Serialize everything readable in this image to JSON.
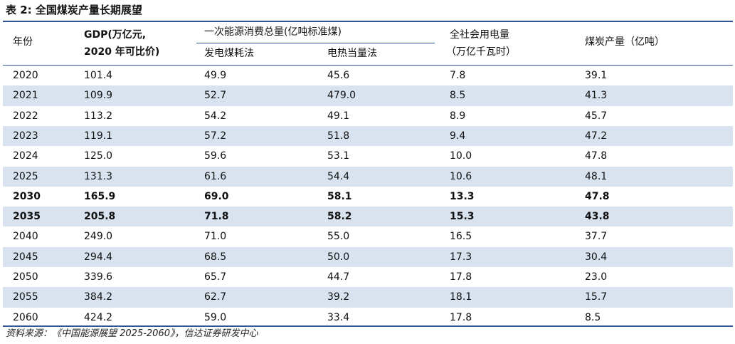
{
  "title": "表 2: 全国煤炭产量长期展望",
  "table": {
    "header": {
      "year": "年份",
      "gdp": [
        "GDP(万亿元,",
        "2020 年可比价)"
      ],
      "energy_group": "一次能源消费总量(亿吨标准煤)",
      "energy_sub": [
        "发电煤耗法",
        "电热当量法"
      ],
      "power": [
        "全社会用电量",
        "（万亿千瓦时）"
      ],
      "coal": "煤炭产量（亿吨）"
    },
    "rows": [
      [
        "2020",
        "101.4",
        "49.9",
        "45.6",
        "7.8",
        "39.1"
      ],
      [
        "2021",
        "109.9",
        "52.7",
        "479.0",
        "8.5",
        "41.3"
      ],
      [
        "2022",
        "113.2",
        "54.2",
        "49.1",
        "8.9",
        "45.7"
      ],
      [
        "2023",
        "119.1",
        "57.2",
        "51.8",
        "9.4",
        "47.2"
      ],
      [
        "2024",
        "125.0",
        "59.6",
        "53.1",
        "10.0",
        "47.8"
      ],
      [
        "2025",
        "131.3",
        "61.6",
        "54.4",
        "10.6",
        "48.1"
      ],
      [
        "2030",
        "165.9",
        "69.0",
        "58.1",
        "13.3",
        "47.8"
      ],
      [
        "2035",
        "205.8",
        "71.8",
        "58.2",
        "15.3",
        "43.8"
      ],
      [
        "2040",
        "249.0",
        "71.0",
        "55.0",
        "16.5",
        "37.7"
      ],
      [
        "2045",
        "294.4",
        "68.5",
        "50.0",
        "17.3",
        "30.4"
      ],
      [
        "2050",
        "339.6",
        "65.7",
        "44.7",
        "17.8",
        "23.0"
      ],
      [
        "2055",
        "384.2",
        "62.7",
        "39.2",
        "18.1",
        "15.7"
      ],
      [
        "2060",
        "424.2",
        "59.0",
        "33.4",
        "17.8",
        "8.5"
      ]
    ]
  },
  "source": "资料来源：《中国能源展望 2025-2060》，信达证券研发中心"
}
